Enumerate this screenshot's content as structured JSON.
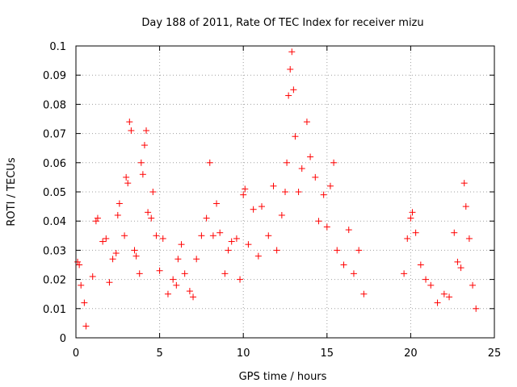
{
  "chart_data": {
    "type": "scatter",
    "title": "Day 188 of 2011, Rate Of TEC Index for receiver mizu",
    "xlabel": "GPS time / hours",
    "ylabel": "ROTI / TECUs",
    "xlim": [
      0,
      25
    ],
    "ylim": [
      0,
      0.1
    ],
    "x_ticks": [
      0,
      5,
      10,
      15,
      20,
      25
    ],
    "x_tick_labels": [
      "0",
      "5",
      "10",
      "15",
      "20",
      "25"
    ],
    "y_ticks": [
      0,
      0.01,
      0.02,
      0.03,
      0.04,
      0.05,
      0.06,
      0.07,
      0.08,
      0.09,
      0.1
    ],
    "y_tick_labels": [
      "0",
      "0.01",
      "0.02",
      "0.03",
      "0.04",
      "0.05",
      "0.06",
      "0.07",
      "0.08",
      "0.09",
      "0.1"
    ],
    "grid": true,
    "marker": "plus",
    "marker_color": "#ff0000",
    "series": [
      {
        "name": "ROTI",
        "points": [
          [
            0.1,
            0.026
          ],
          [
            0.2,
            0.025
          ],
          [
            0.3,
            0.018
          ],
          [
            0.5,
            0.012
          ],
          [
            0.6,
            0.004
          ],
          [
            1.0,
            0.021
          ],
          [
            1.2,
            0.04
          ],
          [
            1.3,
            0.041
          ],
          [
            1.6,
            0.033
          ],
          [
            1.8,
            0.034
          ],
          [
            2.0,
            0.019
          ],
          [
            2.2,
            0.027
          ],
          [
            2.4,
            0.029
          ],
          [
            2.5,
            0.042
          ],
          [
            2.6,
            0.046
          ],
          [
            2.9,
            0.035
          ],
          [
            3.0,
            0.055
          ],
          [
            3.1,
            0.053
          ],
          [
            3.2,
            0.074
          ],
          [
            3.3,
            0.071
          ],
          [
            3.5,
            0.03
          ],
          [
            3.6,
            0.028
          ],
          [
            3.8,
            0.022
          ],
          [
            3.9,
            0.06
          ],
          [
            4.0,
            0.056
          ],
          [
            4.1,
            0.066
          ],
          [
            4.2,
            0.071
          ],
          [
            4.3,
            0.043
          ],
          [
            4.5,
            0.041
          ],
          [
            4.6,
            0.05
          ],
          [
            4.8,
            0.035
          ],
          [
            5.0,
            0.023
          ],
          [
            5.2,
            0.034
          ],
          [
            5.5,
            0.015
          ],
          [
            5.8,
            0.02
          ],
          [
            6.0,
            0.018
          ],
          [
            6.1,
            0.027
          ],
          [
            6.3,
            0.032
          ],
          [
            6.5,
            0.022
          ],
          [
            6.8,
            0.016
          ],
          [
            7.0,
            0.014
          ],
          [
            7.2,
            0.027
          ],
          [
            7.5,
            0.035
          ],
          [
            7.8,
            0.041
          ],
          [
            8.0,
            0.06
          ],
          [
            8.2,
            0.035
          ],
          [
            8.4,
            0.046
          ],
          [
            8.6,
            0.036
          ],
          [
            8.9,
            0.022
          ],
          [
            9.1,
            0.03
          ],
          [
            9.3,
            0.033
          ],
          [
            9.6,
            0.034
          ],
          [
            9.8,
            0.02
          ],
          [
            10.0,
            0.049
          ],
          [
            10.1,
            0.051
          ],
          [
            10.3,
            0.032
          ],
          [
            10.6,
            0.044
          ],
          [
            10.9,
            0.028
          ],
          [
            11.1,
            0.045
          ],
          [
            11.5,
            0.035
          ],
          [
            11.8,
            0.052
          ],
          [
            12.0,
            0.03
          ],
          [
            12.3,
            0.042
          ],
          [
            12.5,
            0.05
          ],
          [
            12.6,
            0.06
          ],
          [
            12.7,
            0.083
          ],
          [
            12.8,
            0.092
          ],
          [
            12.9,
            0.098
          ],
          [
            13.0,
            0.085
          ],
          [
            13.1,
            0.069
          ],
          [
            13.3,
            0.05
          ],
          [
            13.5,
            0.058
          ],
          [
            13.8,
            0.074
          ],
          [
            14.0,
            0.062
          ],
          [
            14.3,
            0.055
          ],
          [
            14.5,
            0.04
          ],
          [
            14.8,
            0.049
          ],
          [
            15.0,
            0.038
          ],
          [
            15.2,
            0.052
          ],
          [
            15.4,
            0.06
          ],
          [
            15.6,
            0.03
          ],
          [
            16.0,
            0.025
          ],
          [
            16.3,
            0.037
          ],
          [
            16.6,
            0.022
          ],
          [
            16.9,
            0.03
          ],
          [
            17.2,
            0.015
          ],
          [
            19.6,
            0.022
          ],
          [
            19.8,
            0.034
          ],
          [
            20.0,
            0.041
          ],
          [
            20.1,
            0.043
          ],
          [
            20.3,
            0.036
          ],
          [
            20.6,
            0.025
          ],
          [
            20.9,
            0.02
          ],
          [
            21.2,
            0.018
          ],
          [
            21.6,
            0.012
          ],
          [
            22.0,
            0.015
          ],
          [
            22.3,
            0.014
          ],
          [
            22.6,
            0.036
          ],
          [
            22.8,
            0.026
          ],
          [
            23.0,
            0.024
          ],
          [
            23.2,
            0.053
          ],
          [
            23.3,
            0.045
          ],
          [
            23.5,
            0.034
          ],
          [
            23.7,
            0.018
          ],
          [
            23.9,
            0.01
          ]
        ]
      }
    ]
  }
}
